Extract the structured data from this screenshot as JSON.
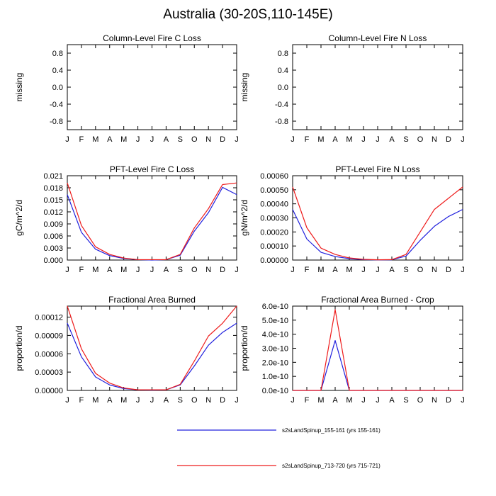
{
  "figure_title": "Australia (30-20S,110-145E)",
  "colors": {
    "series_1": "#2020dd",
    "series_2": "#ee1c1c",
    "axis": "#000000"
  },
  "legend": [
    {
      "label": "s2sLandSpinup_155-161 (yrs 155-161)",
      "color": "#2020dd"
    },
    {
      "label": "s2sLandSpinup_713-720 (yrs 715-721)",
      "color": "#ee1c1c"
    }
  ],
  "chart_data": [
    {
      "type": "line",
      "title": "Column-Level Fire C Loss",
      "xlabel": "",
      "ylabel": "missing",
      "categories": [
        "J",
        "F",
        "M",
        "A",
        "M",
        "J",
        "J",
        "A",
        "S",
        "O",
        "N",
        "D",
        "J"
      ],
      "ylim": [
        -1.0,
        1.0
      ],
      "yticks": [
        -0.8,
        -0.4,
        0.0,
        0.4,
        0.8
      ],
      "ytick_labels": [
        "-0.8",
        "-0.4",
        "0.0",
        "0.4",
        "0.8"
      ],
      "series": []
    },
    {
      "type": "line",
      "title": "Column-Level Fire N Loss",
      "xlabel": "",
      "ylabel": "missing",
      "categories": [
        "J",
        "F",
        "M",
        "A",
        "M",
        "J",
        "J",
        "A",
        "S",
        "O",
        "N",
        "D",
        "J"
      ],
      "ylim": [
        -1.0,
        1.0
      ],
      "yticks": [
        -0.8,
        -0.4,
        0.0,
        0.4,
        0.8
      ],
      "ytick_labels": [
        "-0.8",
        "-0.4",
        "0.0",
        "0.4",
        "0.8"
      ],
      "series": []
    },
    {
      "type": "line",
      "title": "PFT-Level Fire C Loss",
      "xlabel": "",
      "ylabel": "gC/m^2/d",
      "categories": [
        "J",
        "F",
        "M",
        "A",
        "M",
        "J",
        "J",
        "A",
        "S",
        "O",
        "N",
        "D",
        "J"
      ],
      "ylim": [
        0,
        0.021
      ],
      "yticks": [
        0,
        0.003,
        0.006,
        0.009,
        0.012,
        0.015,
        0.018,
        0.021
      ],
      "ytick_labels": [
        "0.000",
        "0.003",
        "0.006",
        "0.009",
        "0.012",
        "0.015",
        "0.018",
        "0.021"
      ],
      "series": [
        {
          "name": "s2sLandSpinup_155-161",
          "color": "#2020dd",
          "values": [
            0.0163,
            0.0069,
            0.0027,
            0.0011,
            0.0004,
            0.0001,
            0.0,
            0.0001,
            0.0012,
            0.0072,
            0.0118,
            0.0181,
            0.0163
          ]
        },
        {
          "name": "s2sLandSpinup_713-720",
          "color": "#ee1c1c",
          "values": [
            0.0192,
            0.0086,
            0.0033,
            0.0014,
            0.0005,
            0.0001,
            0.0001,
            0.0001,
            0.0014,
            0.008,
            0.0128,
            0.0188,
            0.0192
          ]
        }
      ]
    },
    {
      "type": "line",
      "title": "PFT-Level Fire N Loss",
      "xlabel": "",
      "ylabel": "gN/m^2/d",
      "categories": [
        "J",
        "F",
        "M",
        "A",
        "M",
        "J",
        "J",
        "A",
        "S",
        "O",
        "N",
        "D",
        "J"
      ],
      "ylim": [
        0,
        0.0006
      ],
      "yticks": [
        0,
        0.0001,
        0.0002,
        0.0003,
        0.0004,
        0.0005,
        0.0006
      ],
      "ytick_labels": [
        "0.00000",
        "0.00010",
        "0.00020",
        "0.00030",
        "0.00040",
        "0.00050",
        "0.00060"
      ],
      "series": [
        {
          "name": "s2sLandSpinup_155-161",
          "color": "#2020dd",
          "values": [
            0.00036,
            0.00015,
            5.5e-05,
            2.5e-05,
            1e-05,
            3e-06,
            1e-06,
            2e-06,
            2.8e-05,
            0.00014,
            0.00024,
            0.00031,
            0.00036
          ]
        },
        {
          "name": "s2sLandSpinup_713-720",
          "color": "#ee1c1c",
          "values": [
            0.00052,
            0.00023,
            8.5e-05,
            4e-05,
            1.5e-05,
            5e-06,
            2e-06,
            3e-06,
            4e-05,
            0.0002,
            0.00036,
            0.00044,
            0.00052
          ]
        }
      ]
    },
    {
      "type": "line",
      "title": "Fractional Area Burned",
      "xlabel": "",
      "ylabel": "proportion/d",
      "categories": [
        "J",
        "F",
        "M",
        "A",
        "M",
        "J",
        "J",
        "A",
        "S",
        "O",
        "N",
        "D",
        "J"
      ],
      "ylim": [
        0,
        0.000138
      ],
      "yticks": [
        0,
        3e-05,
        6e-05,
        9e-05,
        0.00012
      ],
      "ytick_labels": [
        "0.00000",
        "0.00003",
        "0.00006",
        "0.00009",
        "0.00012"
      ],
      "series": [
        {
          "name": "s2sLandSpinup_155-161",
          "color": "#2020dd",
          "values": [
            0.00011,
            5.5e-05,
            2.2e-05,
            9e-06,
            3e-06,
            1e-06,
            5e-07,
            1e-06,
            9e-06,
            4e-05,
            7.4e-05,
            9.5e-05,
            0.00011
          ]
        },
        {
          "name": "s2sLandSpinup_713-720",
          "color": "#ee1c1c",
          "values": [
            0.000138,
            6.8e-05,
            2.8e-05,
            1.2e-05,
            4e-06,
            1e-06,
            1e-06,
            1e-06,
            1e-05,
            4.8e-05,
            8.9e-05,
            0.00011,
            0.000138
          ]
        }
      ]
    },
    {
      "type": "line",
      "title": "Fractional Area Burned - Crop",
      "xlabel": "",
      "ylabel": "proportion/d",
      "categories": [
        "J",
        "F",
        "M",
        "A",
        "M",
        "J",
        "J",
        "A",
        "S",
        "O",
        "N",
        "D",
        "J"
      ],
      "ylim": [
        0,
        6e-10
      ],
      "yticks": [
        0,
        1e-10,
        2e-10,
        3e-10,
        4e-10,
        5e-10,
        6e-10
      ],
      "ytick_labels": [
        "0.0e-10",
        "1.0e-10",
        "2.0e-10",
        "3.0e-10",
        "4.0e-10",
        "5.0e-10",
        "6.0e-10"
      ],
      "series": [
        {
          "name": "s2sLandSpinup_155-161",
          "color": "#2020dd",
          "values": [
            0,
            0,
            0,
            3.55e-10,
            0,
            0,
            0,
            0,
            0,
            0,
            0,
            0,
            0
          ]
        },
        {
          "name": "s2sLandSpinup_713-720",
          "color": "#ee1c1c",
          "values": [
            0,
            0,
            0,
            5.75e-10,
            0,
            0,
            0,
            0,
            0,
            0,
            0,
            0,
            0
          ]
        }
      ]
    }
  ]
}
